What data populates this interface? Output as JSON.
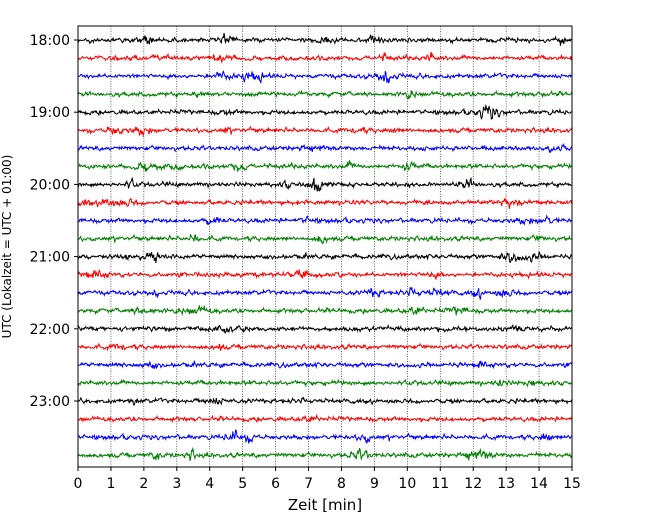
{
  "chart_data": {
    "type": "line",
    "title": "",
    "xlabel": "Zeit  [min]",
    "ylabel": "UTC (Lokalzeit = UTC + 01:00)",
    "xlim": [
      0,
      15
    ],
    "x_ticks": [
      "0",
      "1",
      "2",
      "3",
      "4",
      "5",
      "6",
      "7",
      "8",
      "9",
      "10",
      "11",
      "12",
      "13",
      "14",
      "15"
    ],
    "y_ticks": [
      "18:00",
      "19:00",
      "20:00",
      "21:00",
      "22:00",
      "23:00"
    ],
    "row_interval_minutes": 15,
    "row_count": 24,
    "grid": "vertical-dotted",
    "legend": "none",
    "trace_color_cycle": [
      "#000000",
      "#ff0000",
      "#0000ff",
      "#008000"
    ]
  }
}
